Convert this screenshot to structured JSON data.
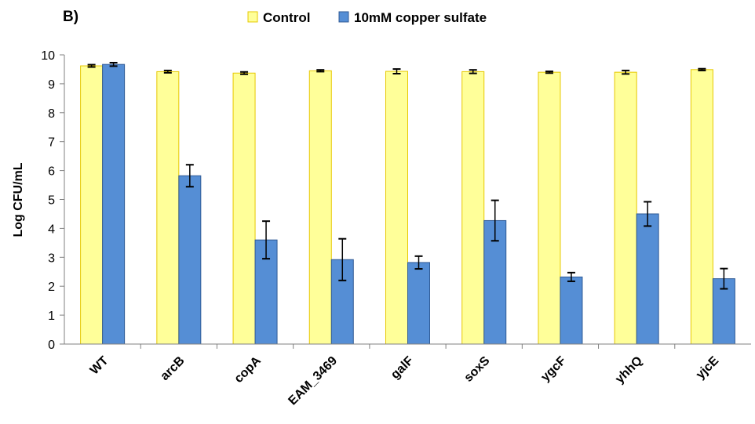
{
  "panel_label": "B)",
  "chart_data": {
    "type": "bar",
    "ylabel": "Log CFU/mL",
    "xlabel": "",
    "ylim": [
      0,
      10
    ],
    "yticks": [
      0,
      1,
      2,
      3,
      4,
      5,
      6,
      7,
      8,
      9,
      10
    ],
    "grid": false,
    "legend_position": "top",
    "categories": [
      "WT",
      "arcB",
      "copA",
      "EAM_3469",
      "galF",
      "soxS",
      "ygcF",
      "yhhQ",
      "yjcE"
    ],
    "series": [
      {
        "name": "Control",
        "color": "#FFFF99",
        "edge_color": "#E6C800",
        "values": [
          9.62,
          9.42,
          9.37,
          9.45,
          9.43,
          9.42,
          9.4,
          9.4,
          9.49
        ],
        "errors": [
          0.04,
          0.04,
          0.04,
          0.03,
          0.08,
          0.06,
          0.03,
          0.06,
          0.03
        ]
      },
      {
        "name": "10mM copper sulfate",
        "color": "#558ED5",
        "edge_color": "#2F5A95",
        "values": [
          9.67,
          5.82,
          3.6,
          2.92,
          2.82,
          4.27,
          2.32,
          4.5,
          2.26
        ],
        "errors": [
          0.06,
          0.38,
          0.65,
          0.72,
          0.22,
          0.7,
          0.15,
          0.42,
          0.35
        ]
      }
    ]
  }
}
